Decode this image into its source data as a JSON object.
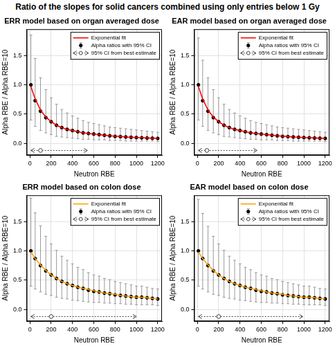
{
  "title": "Ratio of the slopes for solid cancers combined using only entries below 1 Gy",
  "chart_data": [
    {
      "type": "scatter",
      "title": "ERR model based on organ averaged dose",
      "x_label": "Neutron RBE",
      "y_label": "Alpha RBE / Alpha RBE=10",
      "xlim": [
        -30,
        1240
      ],
      "ylim": [
        -0.2,
        1.95
      ],
      "xticks": [
        0,
        200,
        400,
        600,
        800,
        1000,
        1200
      ],
      "yticks": [
        {
          "value": 0,
          "label": "0.0"
        },
        {
          "value": 0.5,
          "label": "0.5"
        },
        {
          "value": 1,
          "label": "1.0"
        },
        {
          "value": 1.5,
          "label": "1.5"
        }
      ],
      "grid": true,
      "legend": "topright",
      "x": [
        10,
        50,
        100,
        150,
        200,
        250,
        300,
        350,
        400,
        450,
        500,
        550,
        600,
        650,
        700,
        750,
        800,
        850,
        900,
        950,
        1000,
        1050,
        1100,
        1150,
        1200
      ],
      "series": [
        {
          "name": "Exponential fit",
          "type": "line",
          "color": "#ff0000",
          "line_style": "solid",
          "values": [
            0.97,
            0.76,
            0.57,
            0.45,
            0.37,
            0.31,
            0.27,
            0.24,
            0.22,
            0.2,
            0.18,
            0.17,
            0.16,
            0.15,
            0.14,
            0.13,
            0.125,
            0.12,
            0.11,
            0.105,
            0.1,
            0.097,
            0.093,
            0.09,
            0.087
          ]
        },
        {
          "name": "Alpha ratios with 95% CI",
          "type": "scatter",
          "color": "#000000",
          "marker": "circle",
          "values": [
            1.0,
            0.73,
            0.55,
            0.44,
            0.37,
            0.31,
            0.27,
            0.24,
            0.22,
            0.2,
            0.18,
            0.17,
            0.16,
            0.15,
            0.14,
            0.13,
            0.12,
            0.116,
            0.11,
            0.105,
            0.1,
            0.096,
            0.092,
            0.088,
            0.085
          ],
          "ci_low": [
            0.4,
            0.29,
            0.22,
            0.18,
            0.15,
            0.12,
            0.11,
            0.1,
            0.09,
            0.08,
            0.07,
            0.07,
            0.06,
            0.06,
            0.06,
            0.05,
            0.05,
            0.05,
            0.04,
            0.04,
            0.04,
            0.04,
            0.04,
            0.04,
            0.03
          ],
          "ci_high": [
            1.85,
            1.45,
            1.12,
            0.92,
            0.78,
            0.67,
            0.58,
            0.52,
            0.47,
            0.43,
            0.39,
            0.36,
            0.34,
            0.32,
            0.3,
            0.28,
            0.27,
            0.26,
            0.25,
            0.24,
            0.23,
            0.22,
            0.21,
            0.2,
            0.19
          ]
        },
        {
          "name": "95% CI from best estimate",
          "type": "interval",
          "color": "#404040",
          "marker": "open_circle",
          "line_style": "dotted",
          "x": [
            100
          ],
          "values": [
            -0.12
          ],
          "x_low": [
            10
          ],
          "x_high": [
            540
          ]
        }
      ]
    },
    {
      "type": "scatter",
      "title": "EAR model based on organ averaged dose",
      "x_label": "Neutron RBE",
      "y_label": "Alpha RBE / Alpha RBE=10",
      "xlim": [
        -30,
        1240
      ],
      "ylim": [
        -0.2,
        1.95
      ],
      "xticks": [
        0,
        200,
        400,
        600,
        800,
        1000,
        1200
      ],
      "yticks": [
        {
          "value": 0,
          "label": "0.0"
        },
        {
          "value": 0.5,
          "label": "0.5"
        },
        {
          "value": 1,
          "label": "1.0"
        },
        {
          "value": 1.5,
          "label": "1.5"
        }
      ],
      "grid": true,
      "legend": "topright",
      "x": [
        10,
        50,
        100,
        150,
        200,
        250,
        300,
        350,
        400,
        450,
        500,
        550,
        600,
        650,
        700,
        750,
        800,
        850,
        900,
        950,
        1000,
        1050,
        1100,
        1150,
        1200
      ],
      "series": [
        {
          "name": "Exponential fit",
          "type": "line",
          "color": "#ff0000",
          "line_style": "solid",
          "values": [
            0.97,
            0.76,
            0.57,
            0.45,
            0.37,
            0.31,
            0.27,
            0.24,
            0.22,
            0.2,
            0.18,
            0.17,
            0.16,
            0.15,
            0.14,
            0.13,
            0.125,
            0.12,
            0.11,
            0.105,
            0.1,
            0.097,
            0.093,
            0.09,
            0.087
          ]
        },
        {
          "name": "Alpha ratios with 95% CI",
          "type": "scatter",
          "color": "#000000",
          "marker": "circle",
          "values": [
            1.0,
            0.73,
            0.55,
            0.44,
            0.37,
            0.31,
            0.27,
            0.24,
            0.22,
            0.2,
            0.18,
            0.17,
            0.16,
            0.15,
            0.14,
            0.13,
            0.12,
            0.116,
            0.11,
            0.105,
            0.1,
            0.096,
            0.092,
            0.088,
            0.085
          ],
          "ci_low": [
            0.4,
            0.29,
            0.22,
            0.18,
            0.15,
            0.12,
            0.11,
            0.1,
            0.09,
            0.08,
            0.07,
            0.07,
            0.06,
            0.06,
            0.06,
            0.05,
            0.05,
            0.05,
            0.04,
            0.04,
            0.04,
            0.04,
            0.04,
            0.04,
            0.03
          ],
          "ci_high": [
            1.8,
            1.42,
            1.12,
            0.92,
            0.78,
            0.67,
            0.58,
            0.52,
            0.47,
            0.43,
            0.39,
            0.36,
            0.34,
            0.32,
            0.3,
            0.28,
            0.27,
            0.26,
            0.25,
            0.24,
            0.23,
            0.22,
            0.21,
            0.2,
            0.19
          ]
        },
        {
          "name": "95% CI from best estimate",
          "type": "interval",
          "color": "#404040",
          "marker": "open_circle",
          "line_style": "dotted",
          "x": [
            90
          ],
          "values": [
            -0.12
          ],
          "x_low": [
            10
          ],
          "x_high": [
            560
          ]
        }
      ]
    },
    {
      "type": "scatter",
      "title": "ERR model based on colon dose",
      "x_label": "Neutron RBE",
      "y_label": "Alpha RBE / Alpha RBE=10",
      "xlim": [
        -30,
        1240
      ],
      "ylim": [
        -0.2,
        1.95
      ],
      "xticks": [
        0,
        200,
        400,
        600,
        800,
        1000,
        1200
      ],
      "yticks": [
        {
          "value": 0,
          "label": "0.0"
        },
        {
          "value": 0.5,
          "label": "0.5"
        },
        {
          "value": 1,
          "label": "1.0"
        },
        {
          "value": 1.5,
          "label": "1.5"
        }
      ],
      "grid": true,
      "legend": "topright",
      "x": [
        10,
        50,
        100,
        150,
        200,
        250,
        300,
        350,
        400,
        450,
        500,
        550,
        600,
        650,
        700,
        750,
        800,
        850,
        900,
        950,
        1000,
        1050,
        1100,
        1150,
        1200
      ],
      "series": [
        {
          "name": "Exponential fit",
          "type": "line",
          "color": "#ffa500",
          "line_style": "solid",
          "values": [
            0.98,
            0.87,
            0.76,
            0.67,
            0.59,
            0.53,
            0.48,
            0.44,
            0.41,
            0.38,
            0.36,
            0.34,
            0.32,
            0.3,
            0.28,
            0.27,
            0.26,
            0.24,
            0.23,
            0.22,
            0.21,
            0.21,
            0.2,
            0.19,
            0.18
          ]
        },
        {
          "name": "Alpha ratios with 95% CI",
          "type": "scatter",
          "color": "#000000",
          "marker": "circle",
          "values": [
            1.0,
            0.87,
            0.75,
            0.66,
            0.59,
            0.53,
            0.48,
            0.44,
            0.41,
            0.38,
            0.36,
            0.33,
            0.31,
            0.3,
            0.28,
            0.27,
            0.25,
            0.24,
            0.23,
            0.22,
            0.21,
            0.21,
            0.2,
            0.19,
            0.18
          ],
          "ci_low": [
            0.4,
            0.35,
            0.3,
            0.26,
            0.24,
            0.21,
            0.19,
            0.18,
            0.16,
            0.15,
            0.14,
            0.13,
            0.12,
            0.12,
            0.11,
            0.11,
            0.1,
            0.1,
            0.09,
            0.09,
            0.08,
            0.08,
            0.08,
            0.08,
            0.07
          ],
          "ci_high": [
            1.9,
            1.65,
            1.43,
            1.25,
            1.12,
            1.01,
            0.91,
            0.84,
            0.78,
            0.72,
            0.68,
            0.63,
            0.59,
            0.57,
            0.53,
            0.51,
            0.48,
            0.46,
            0.44,
            0.42,
            0.4,
            0.4,
            0.38,
            0.36,
            0.35
          ]
        },
        {
          "name": "95% CI from best estimate",
          "type": "interval",
          "color": "#404040",
          "marker": "open_circle",
          "line_style": "dotted",
          "x": [
            200
          ],
          "values": [
            -0.12
          ],
          "x_low": [
            10
          ],
          "x_high": [
            1000
          ]
        }
      ]
    },
    {
      "type": "scatter",
      "title": "EAR model based on colon dose",
      "x_label": "Neutron RBE",
      "y_label": "Alpha RBE / Alpha RBE=10",
      "xlim": [
        -30,
        1240
      ],
      "ylim": [
        -0.2,
        1.95
      ],
      "xticks": [
        0,
        200,
        400,
        600,
        800,
        1000,
        1200
      ],
      "yticks": [
        {
          "value": 0,
          "label": "0.0"
        },
        {
          "value": 0.5,
          "label": "0.5"
        },
        {
          "value": 1,
          "label": "1.0"
        },
        {
          "value": 1.5,
          "label": "1.5"
        }
      ],
      "grid": true,
      "legend": "topright",
      "x": [
        10,
        50,
        100,
        150,
        200,
        250,
        300,
        350,
        400,
        450,
        500,
        550,
        600,
        650,
        700,
        750,
        800,
        850,
        900,
        950,
        1000,
        1050,
        1100,
        1150,
        1200
      ],
      "series": [
        {
          "name": "Exponential fit",
          "type": "line",
          "color": "#ffa500",
          "line_style": "solid",
          "values": [
            0.98,
            0.87,
            0.76,
            0.67,
            0.59,
            0.53,
            0.48,
            0.44,
            0.41,
            0.38,
            0.36,
            0.34,
            0.32,
            0.3,
            0.28,
            0.27,
            0.26,
            0.24,
            0.23,
            0.22,
            0.21,
            0.21,
            0.2,
            0.19,
            0.18
          ]
        },
        {
          "name": "Alpha ratios with 95% CI",
          "type": "scatter",
          "color": "#000000",
          "marker": "circle",
          "values": [
            1.0,
            0.87,
            0.75,
            0.66,
            0.59,
            0.53,
            0.48,
            0.44,
            0.41,
            0.38,
            0.36,
            0.33,
            0.31,
            0.3,
            0.28,
            0.27,
            0.25,
            0.24,
            0.23,
            0.22,
            0.21,
            0.21,
            0.2,
            0.19,
            0.18
          ],
          "ci_low": [
            0.4,
            0.35,
            0.3,
            0.26,
            0.24,
            0.21,
            0.19,
            0.18,
            0.16,
            0.15,
            0.14,
            0.13,
            0.12,
            0.12,
            0.11,
            0.11,
            0.1,
            0.1,
            0.09,
            0.09,
            0.08,
            0.08,
            0.08,
            0.08,
            0.07
          ],
          "ci_high": [
            1.88,
            1.64,
            1.42,
            1.25,
            1.12,
            1.01,
            0.91,
            0.84,
            0.78,
            0.72,
            0.68,
            0.63,
            0.59,
            0.57,
            0.53,
            0.51,
            0.48,
            0.46,
            0.44,
            0.42,
            0.4,
            0.4,
            0.38,
            0.36,
            0.35
          ]
        },
        {
          "name": "95% CI from best estimate",
          "type": "interval",
          "color": "#404040",
          "marker": "open_circle",
          "line_style": "dotted",
          "x": [
            200
          ],
          "values": [
            -0.12
          ],
          "x_low": [
            10
          ],
          "x_high": [
            990
          ]
        }
      ]
    }
  ]
}
